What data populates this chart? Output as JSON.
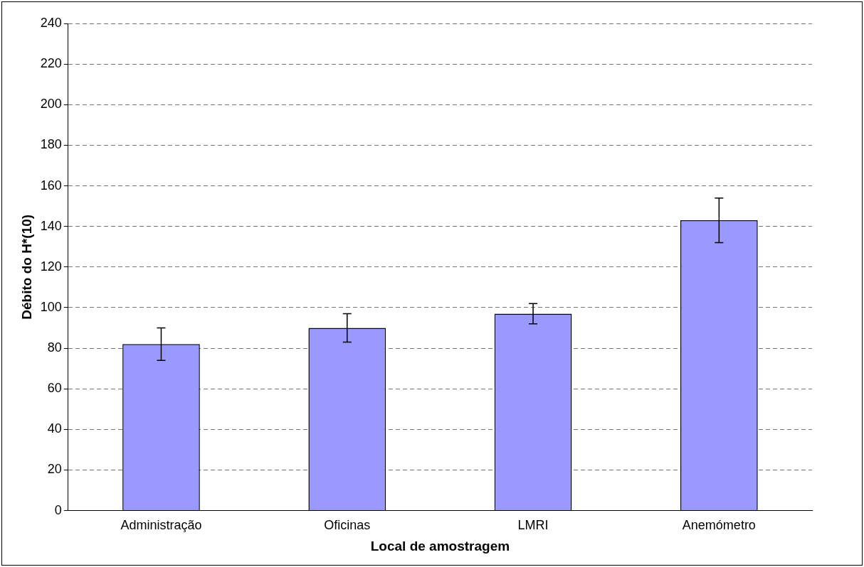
{
  "chart_data": {
    "type": "bar",
    "xlabel": "Local de amostragem",
    "ylabel": "Débito do H*(10)",
    "categories": [
      "Administração",
      "Oficinas",
      "LMRI",
      "Anemómetro"
    ],
    "values": [
      82,
      90,
      97,
      143
    ],
    "errors": [
      8,
      7,
      5,
      11
    ],
    "color": "#9999ff",
    "ylim": [
      0,
      240
    ],
    "yticks": [
      0,
      20,
      40,
      60,
      80,
      100,
      120,
      140,
      160,
      180,
      200,
      220,
      240
    ],
    "grid": "y",
    "line_style": "dashed"
  }
}
